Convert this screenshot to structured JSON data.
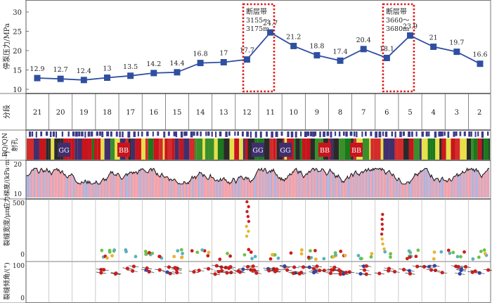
{
  "chart_data": {
    "type": "line",
    "title": "",
    "ylabel": "停泵压力/MPa",
    "ylim": [
      10,
      30
    ],
    "yticks": [
      10,
      15,
      20,
      25,
      30
    ],
    "stages": [
      21,
      20,
      19,
      18,
      17,
      16,
      15,
      14,
      13,
      12,
      11,
      10,
      9,
      8,
      7,
      6,
      5,
      4,
      3,
      2
    ],
    "values": [
      12.9,
      12.7,
      12.4,
      13,
      13.5,
      14.2,
      14.4,
      16.8,
      17,
      17.7,
      24.7,
      21.2,
      18.8,
      17.4,
      20.4,
      18.1,
      23.9,
      21,
      19.7,
      16.6
    ],
    "value_labels": [
      "12.9",
      "12.7",
      "12.4",
      "13",
      "13.5",
      "14.2",
      "14.4",
      "16.8",
      "17",
      "17.7",
      "24.7",
      "21.2",
      "18.8",
      "17.4",
      "20.4",
      "18.1",
      "23.9",
      "21",
      "19.7",
      "16.6"
    ],
    "fault_zones": [
      {
        "lines": [
          "断层带",
          "3155～",
          "3175m"
        ],
        "after_stage": 12
      },
      {
        "lines": [
          "断层带",
          "3660～",
          "3680m"
        ],
        "after_stage": 6
      }
    ],
    "series_color": "#2f4fa0",
    "fault_color": "#e01818"
  },
  "tracks": {
    "stage_label": "分段",
    "rqi_label": "RQ/QN",
    "perf_label": "射孔",
    "stress_label": "应力梯度/(kPa·m⁻¹)",
    "stress_ticks": [
      "10",
      "20"
    ],
    "width_label": "裂缝宽度/μm",
    "width_ticks": [
      "500",
      "0"
    ],
    "dip_label": "裂缝倾角/(°)",
    "dip_ticks": [
      "100",
      "0"
    ],
    "facies_badges": [
      "GG",
      "BB",
      "GG",
      "GG",
      "BB",
      "BB"
    ]
  }
}
